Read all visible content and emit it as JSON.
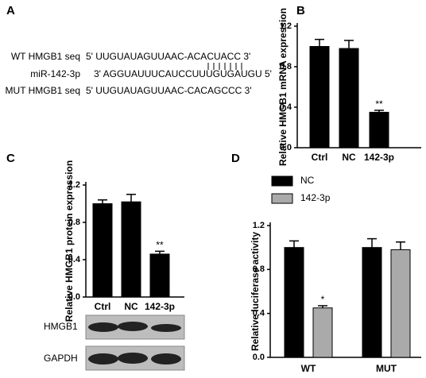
{
  "panel_labels": [
    "A",
    "B",
    "C",
    "D"
  ],
  "sequences": [
    {
      "label": "WT HMGB1 seq",
      "seq": "5' UUGUAUAGUUAAC-ACACUACC 3'"
    },
    {
      "label": "miR-142-3p",
      "seq": "3' AGGUAUUUCAUCCUUUGUGAUGU 5'"
    },
    {
      "label": "MUT HMGB1 seq",
      "seq": "5' UUGUAUAGUUAAC-CACAGCCC 3'"
    }
  ],
  "chart_data": [
    {
      "type": "bar",
      "y_label": "Relative HMGB1 mRNA expression",
      "categories": [
        "Ctrl",
        "NC",
        "142-3p"
      ],
      "values": [
        1.0,
        0.98,
        0.35
      ],
      "errors": [
        0.07,
        0.08,
        0.02
      ],
      "annotations": [
        null,
        null,
        "**"
      ],
      "color": "#000000",
      "ylim": [
        0,
        1.2
      ],
      "yticks": [
        {
          "value": 0,
          "label": "0.0"
        },
        0.4,
        0.8,
        1.2
      ]
    },
    {
      "type": "bar",
      "y_label": "Relative HMGB1 protein expression",
      "categories": [
        "Ctrl",
        "NC",
        "142-3p"
      ],
      "values": [
        1.0,
        1.02,
        0.46
      ],
      "errors": [
        0.04,
        0.08,
        0.03
      ],
      "annotations": [
        null,
        null,
        "**"
      ],
      "color": "#000000",
      "ylim": [
        0,
        1.2
      ],
      "yticks": [
        {
          "value": 0,
          "label": "0.0"
        },
        0.4,
        0.8,
        1.2
      ],
      "blots": [
        "HMGB1",
        "GAPDH"
      ]
    },
    {
      "type": "grouped_bar",
      "y_label": "Relative luciferase activity",
      "categories": [
        "WT",
        "MUT"
      ],
      "series": [
        {
          "name": "NC",
          "color": "#000000",
          "values": [
            1.0,
            1.0
          ],
          "errors": [
            0.06,
            0.08
          ],
          "annotations": [
            null,
            null
          ]
        },
        {
          "name": "142-3p",
          "color": "#aaaaaa",
          "values": [
            0.45,
            0.98
          ],
          "errors": [
            0.02,
            0.07
          ],
          "annotations": [
            "*",
            null
          ]
        }
      ],
      "legend": "top-left",
      "ylim": [
        0,
        1.2
      ],
      "yticks": [
        {
          "value": 0,
          "label": "0.0"
        },
        0.4,
        0.8,
        1.2
      ]
    }
  ]
}
